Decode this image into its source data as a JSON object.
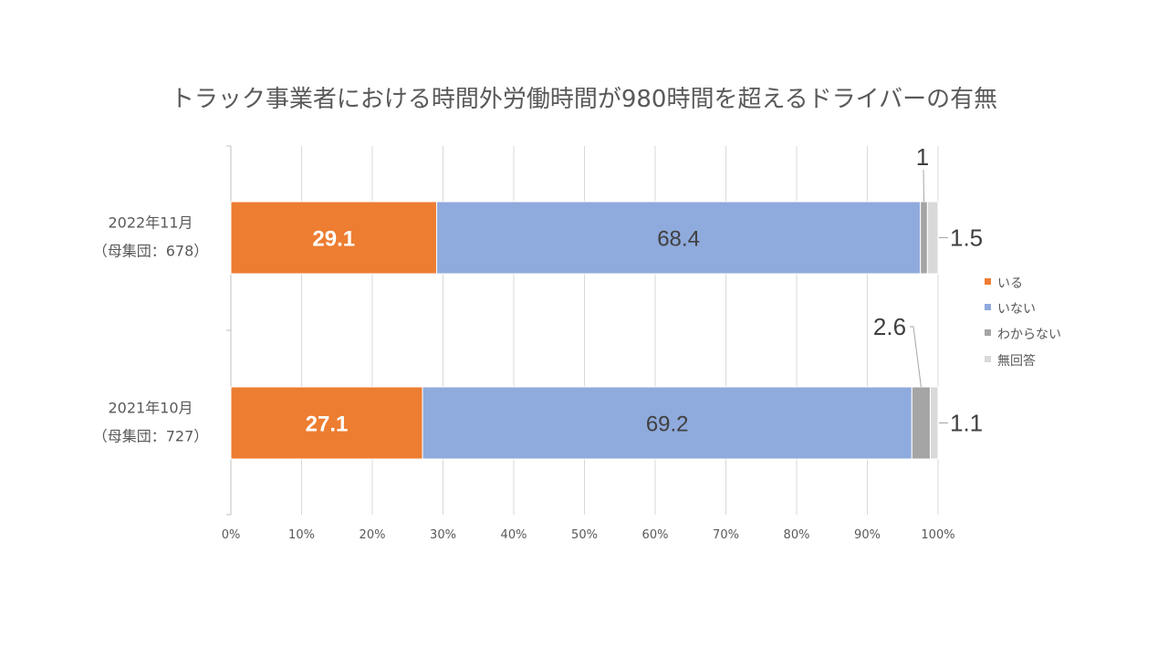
{
  "chart_data": {
    "type": "bar",
    "orientation": "horizontal",
    "stacked": "percent",
    "title": "トラック事業者における時間外労働時間が980時間を超えるドライバーの有無",
    "categories": [
      {
        "lines": [
          "2022年11月",
          "（母集団：678）"
        ]
      },
      {
        "lines": [
          "2021年10月",
          "（母集団：727）"
        ]
      }
    ],
    "series": [
      {
        "name": "いる",
        "color": "#ED7D31",
        "values": [
          29.1,
          27.1
        ],
        "labels": [
          "29.1",
          "27.1"
        ]
      },
      {
        "name": "いない",
        "color": "#8FAADC",
        "values": [
          68.4,
          69.2
        ],
        "labels": [
          "68.4",
          "69.2"
        ]
      },
      {
        "name": "わからない",
        "color": "#A5A5A5",
        "values": [
          1,
          2.6
        ],
        "labels": [
          "1",
          "2.6"
        ]
      },
      {
        "name": "無回答",
        "color": "#D9D9D9",
        "values": [
          1.5,
          1.1
        ],
        "labels": [
          "1.5",
          "1.1"
        ]
      }
    ],
    "xlim": [
      0,
      100
    ],
    "xticks": [
      "0%",
      "10%",
      "20%",
      "30%",
      "40%",
      "50%",
      "60%",
      "70%",
      "80%",
      "90%",
      "100%"
    ],
    "grid": true,
    "legend": "right"
  }
}
